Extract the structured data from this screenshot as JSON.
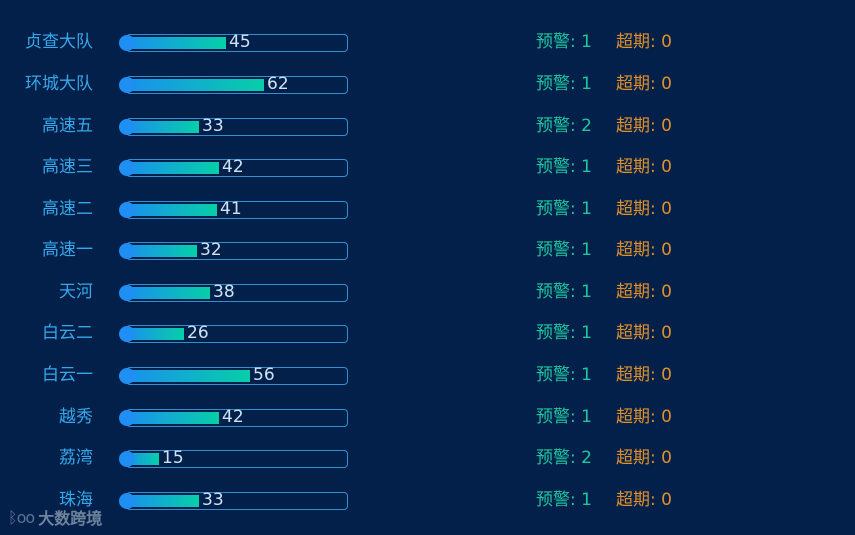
{
  "chart_data": {
    "type": "bar",
    "orientation": "horizontal",
    "xlim": [
      0,
      100
    ],
    "categories": [
      "贞查大队",
      "环城大队",
      "高速五",
      "高速三",
      "高速二",
      "高速一",
      "天河",
      "白云二",
      "白云一",
      "越秀",
      "荔湾",
      "珠海"
    ],
    "values": [
      45,
      62,
      33,
      42,
      41,
      32,
      38,
      26,
      56,
      42,
      15,
      33
    ],
    "warning_label": "预警",
    "warnings": [
      1,
      1,
      2,
      1,
      1,
      1,
      1,
      1,
      1,
      1,
      2,
      1
    ],
    "overdue_label": "超期",
    "overdue": [
      0,
      0,
      0,
      0,
      0,
      0,
      0,
      0,
      0,
      0,
      0,
      0
    ],
    "colors": {
      "background": "#03204a",
      "bar_start": "#1a8fef",
      "bar_end": "#06cfa8",
      "track_border": "#2e8fd1",
      "category": "#35a8ea",
      "value": "#cfe3f5",
      "warning": "#1ec7a0",
      "overdue": "#e0902a"
    }
  },
  "watermark": {
    "logo": "ᛒoo",
    "text": "大数跨境"
  }
}
